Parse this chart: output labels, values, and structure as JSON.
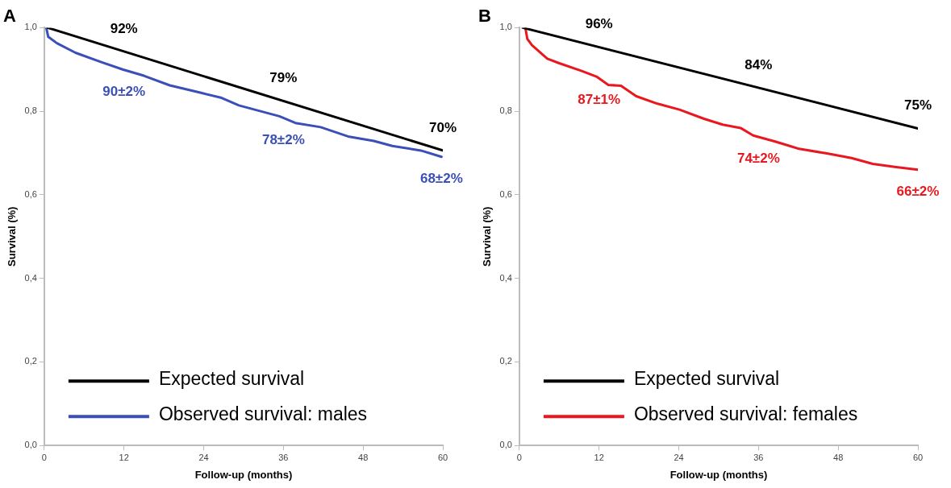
{
  "chart_data": [
    {
      "type": "line",
      "title": "A",
      "xlabel": "Follow-up (months)",
      "ylabel": "Survival (%)",
      "xlim": [
        0,
        60
      ],
      "ylim": [
        0,
        1
      ],
      "xticks": [
        0,
        12,
        24,
        36,
        48,
        60
      ],
      "yticks": [
        {
          "value": 0,
          "label": "0,0"
        },
        {
          "value": 0.2,
          "label": "0,2"
        },
        {
          "value": 0.4,
          "label": "0,4"
        },
        {
          "value": 0.6,
          "label": "0,6"
        },
        {
          "value": 0.8,
          "label": "0,8"
        },
        {
          "value": 1,
          "label": "1,0"
        }
      ],
      "grid": false,
      "legend": "bottom left",
      "marker": "none",
      "series": [
        {
          "name": "Expected survival",
          "color": "#000000",
          "x": [
            0.5,
            60
          ],
          "values": [
            1.0,
            0.706
          ]
        },
        {
          "name": "Observed survival: males",
          "color": "#3a4fb8",
          "x": [
            0.3,
            0.6,
            1.9,
            4.7,
            8.5,
            11.8,
            15,
            18.9,
            23.6,
            26.7,
            29.3,
            35.4,
            37.8,
            41.6,
            45.9,
            49.6,
            52.4,
            56.7,
            59.8
          ],
          "values": [
            1.0,
            0.978,
            0.963,
            0.94,
            0.918,
            0.9,
            0.885,
            0.862,
            0.844,
            0.832,
            0.814,
            0.788,
            0.772,
            0.762,
            0.739,
            0.729,
            0.717,
            0.706,
            0.691
          ]
        }
      ],
      "annotations": [
        {
          "text": "92%",
          "x": 12,
          "y": 0.943
        },
        {
          "text": "79%",
          "x": 36,
          "y": 0.825
        },
        {
          "text": "70%",
          "x": 60,
          "y": 0.706
        },
        {
          "text": "90±2%",
          "x": 12,
          "y": 0.9
        },
        {
          "text": "78±2%",
          "x": 36,
          "y": 0.784
        },
        {
          "text": "68±2%",
          "x": 59.8,
          "y": 0.691
        }
      ]
    },
    {
      "type": "line",
      "title": "B",
      "xlabel": "Follow-up (months)",
      "ylabel": "Survival (%)",
      "xlim": [
        0,
        60
      ],
      "ylim": [
        0,
        1
      ],
      "xticks": [
        0,
        12,
        24,
        36,
        48,
        60
      ],
      "yticks": [
        {
          "value": 0,
          "label": "0,0"
        },
        {
          "value": 0.2,
          "label": "0,2"
        },
        {
          "value": 0.4,
          "label": "0,4"
        },
        {
          "value": 0.6,
          "label": "0,6"
        },
        {
          "value": 0.8,
          "label": "0,8"
        },
        {
          "value": 1,
          "label": "1,0"
        }
      ],
      "grid": false,
      "legend": "bottom left",
      "marker": "none",
      "series": [
        {
          "name": "Expected survival",
          "color": "#000000",
          "x": [
            0.5,
            60
          ],
          "values": [
            1.0,
            0.759
          ]
        },
        {
          "name": "Observed survival: females",
          "color": "#e8181e",
          "x": [
            0.9,
            1.2,
            1.9,
            4.2,
            6,
            9.3,
            11.6,
            13.4,
            15.3,
            17.6,
            20.8,
            24.1,
            27.8,
            30.6,
            33.3,
            35.2,
            38.4,
            40.7,
            42.1,
            46.3,
            50,
            53.2,
            56.5,
            60
          ],
          "values": [
            1.0,
            0.973,
            0.958,
            0.926,
            0.915,
            0.897,
            0.883,
            0.863,
            0.861,
            0.836,
            0.818,
            0.804,
            0.782,
            0.768,
            0.76,
            0.742,
            0.728,
            0.717,
            0.71,
            0.699,
            0.688,
            0.674,
            0.667,
            0.66
          ]
        }
      ],
      "annotations": [
        {
          "text": "96%",
          "x": 12,
          "y": 0.953
        },
        {
          "text": "84%",
          "x": 36,
          "y": 0.856
        },
        {
          "text": "75%",
          "x": 60,
          "y": 0.759
        },
        {
          "text": "87±1%",
          "x": 12,
          "y": 0.88
        },
        {
          "text": "74±2%",
          "x": 36,
          "y": 0.739
        },
        {
          "text": "66±2%",
          "x": 60,
          "y": 0.66
        }
      ]
    }
  ]
}
